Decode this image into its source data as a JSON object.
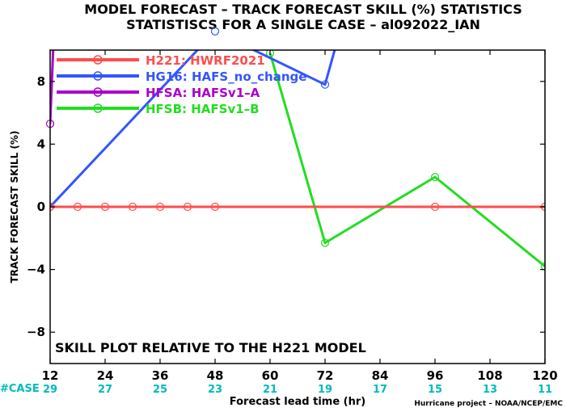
{
  "title_line1": "MODEL FORECAST – TRACK FORECAST SKILL (%) STATISTICS",
  "title_line2": "STATISTISCS FOR A SINGLE CASE – al092022_IAN",
  "footer_credit": "Hurricane project – NOAA/NCEP/EMC",
  "case_label": "#CASE",
  "annotation": "SKILL PLOT RELATIVE TO THE H221 MODEL",
  "colors": {
    "H221": "#ff4d4d",
    "HG16": "#3355ff",
    "HFSA": "#aa00cc",
    "HFSB": "#22dd22",
    "case_text": "#00bbbb",
    "zero_line": "#000000"
  },
  "chart_data": {
    "type": "line",
    "xlabel": "Forecast lead time (hr)",
    "ylabel": "TRACK FORECAST SKILL (%)",
    "xlim": [
      12,
      120
    ],
    "ylim": [
      -10,
      10
    ],
    "x_ticks": [
      12,
      24,
      36,
      48,
      60,
      72,
      84,
      96,
      108,
      120
    ],
    "y_ticks": [
      -8,
      -4,
      0,
      4,
      8
    ],
    "case_counts": [
      29,
      27,
      25,
      23,
      21,
      19,
      17,
      15,
      13,
      11
    ],
    "legend_position": "top-left",
    "series": [
      {
        "name": "H221: HWRF2021",
        "key": "H221",
        "points": [
          [
            12,
            0
          ],
          [
            18,
            0
          ],
          [
            24,
            0
          ],
          [
            30,
            0
          ],
          [
            36,
            0
          ],
          [
            42,
            0
          ],
          [
            48,
            0
          ],
          [
            96,
            0
          ],
          [
            120,
            0
          ]
        ]
      },
      {
        "name": "HG16: HAFS_no_change",
        "key": "HG16",
        "points": [
          [
            12,
            0
          ],
          [
            48,
            11.2
          ],
          [
            72,
            7.8
          ],
          [
            76,
            12
          ]
        ]
      },
      {
        "name": "HFSA: HAFSv1–A",
        "key": "HFSA",
        "points": [
          [
            12,
            5.3
          ],
          [
            12.8,
            11
          ]
        ]
      },
      {
        "name": "HFSB: HAFSv1–B",
        "key": "HFSB",
        "points": [
          [
            60,
            9.8
          ],
          [
            72,
            -2.3
          ],
          [
            96,
            1.9
          ],
          [
            120,
            -3.8
          ]
        ]
      }
    ]
  }
}
